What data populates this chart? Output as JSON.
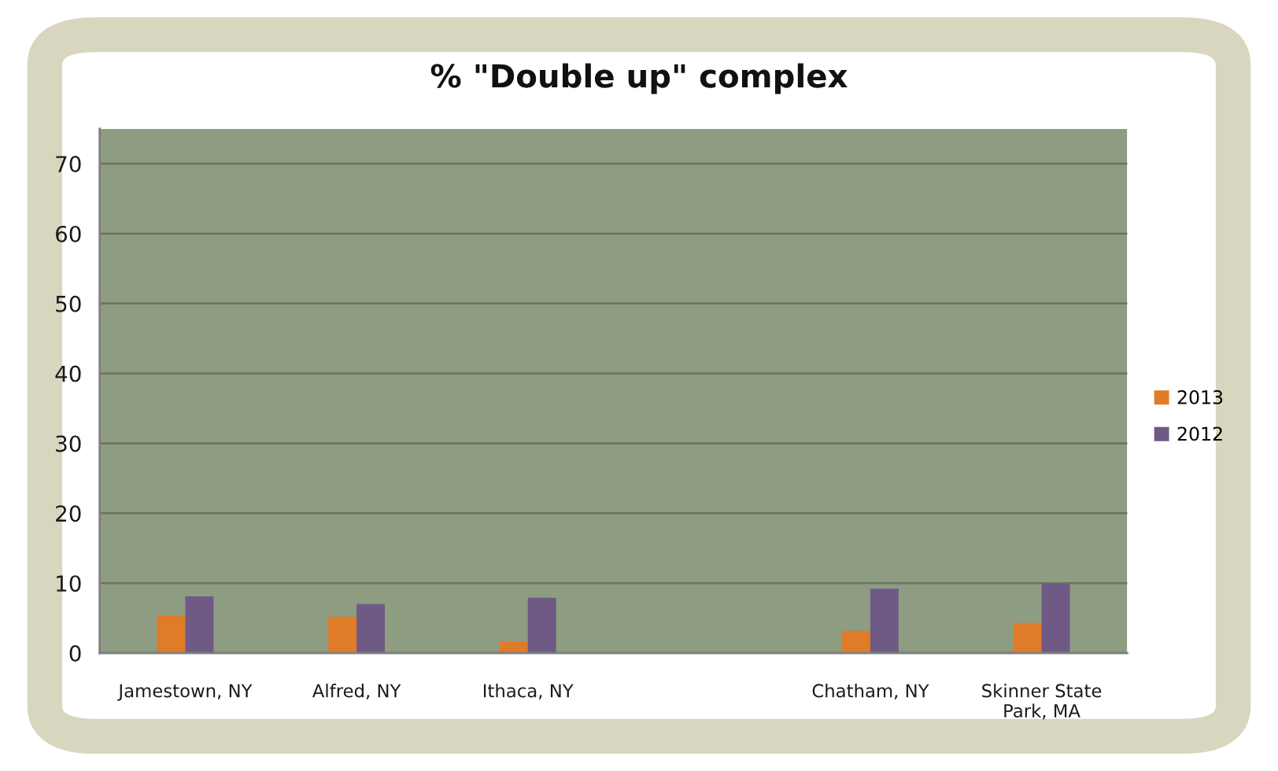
{
  "chart_data": {
    "type": "bar",
    "title": "% \"Double up\" complex",
    "categories": [
      "Jamestown, NY",
      "Alfred, NY",
      "Ithaca, NY",
      null,
      "Chatham, NY",
      "Skinner State Park, MA"
    ],
    "series": [
      {
        "name": "2013",
        "color": "#e07b27",
        "values": [
          5.4,
          5.2,
          1.6,
          null,
          3.2,
          4.3
        ]
      },
      {
        "name": "2012",
        "color": "#6f5a86",
        "values": [
          8.1,
          7.0,
          7.9,
          null,
          9.2,
          9.9
        ]
      }
    ],
    "ylim": [
      0,
      75
    ],
    "yticks": [
      0,
      10,
      20,
      30,
      40,
      50,
      60,
      70
    ],
    "grid": "y",
    "legend": "right"
  }
}
